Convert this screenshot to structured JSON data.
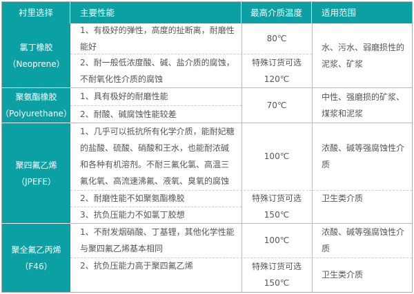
{
  "headers": [
    "衬里选择",
    "主要性能",
    "最高介质温度",
    "适用范围"
  ],
  "rows": [
    {
      "name": "氯丁橡胶",
      "sub": "（Neoprene）",
      "props": [
        "1、有极好的弹性，高度的扯断离，耐磨性",
        "能好",
        "2、耐一般低浓度酸、碱、盐介质的腐蚀，",
        "不耐氧化性介质的腐蚀"
      ],
      "temps": [
        "80℃",
        "特殊订货可选",
        "120℃"
      ],
      "scope": [
        "水、污水、弱磨损性的",
        "泥浆、矿浆"
      ]
    },
    {
      "name": "聚氨酯橡胶",
      "sub": "（Polyurethane）",
      "props": [
        "1、具有极好的耐磨性能",
        "2、耐酸、碱腐蚀性能较差"
      ],
      "temps": [
        "70℃"
      ],
      "scope": [
        "中性、强磨损的矿浆、",
        "煤浆和泥浆"
      ]
    },
    {
      "name": "聚四氟乙烯",
      "sub": "（JPEFE）",
      "props": [
        "1、几乎可以抵抗所有化学介质，能耐妃糖",
        "的盐酸、硫酸、硝酸和王水，也能耐浓碱",
        "和各种有机溶剂。不耐三氟化氯、高温三",
        "氟化氧、高流速沸氟、液氧、臭氧的腐蚀",
        "2、耐磨性能不如聚氨酯橡胶",
        "3、抗负压能力不如氯丁胶想"
      ],
      "temps": [
        "100℃",
        "特殊订货可选",
        "150℃"
      ],
      "scope": [
        "浓酸、碱等强腐蚀性介",
        "质",
        "卫生类介质"
      ]
    },
    {
      "name": "聚全氟乙丙烯",
      "sub": "（F46）",
      "props": [
        "1、不耐发烟硝酸、丁基锂，其他化学性能",
        "与聚四氟乙烯基本相同",
        "2、抗负压能力高于聚四氟乙烯"
      ],
      "temps": [
        "100℃",
        "特殊订货可选",
        "150℃"
      ],
      "scope": [
        "浓酸、碱等强腐蚀性介",
        "质",
        "卫生类介质"
      ]
    }
  ],
  "colors": {
    "header_bg": "#0aa0a4"
  }
}
